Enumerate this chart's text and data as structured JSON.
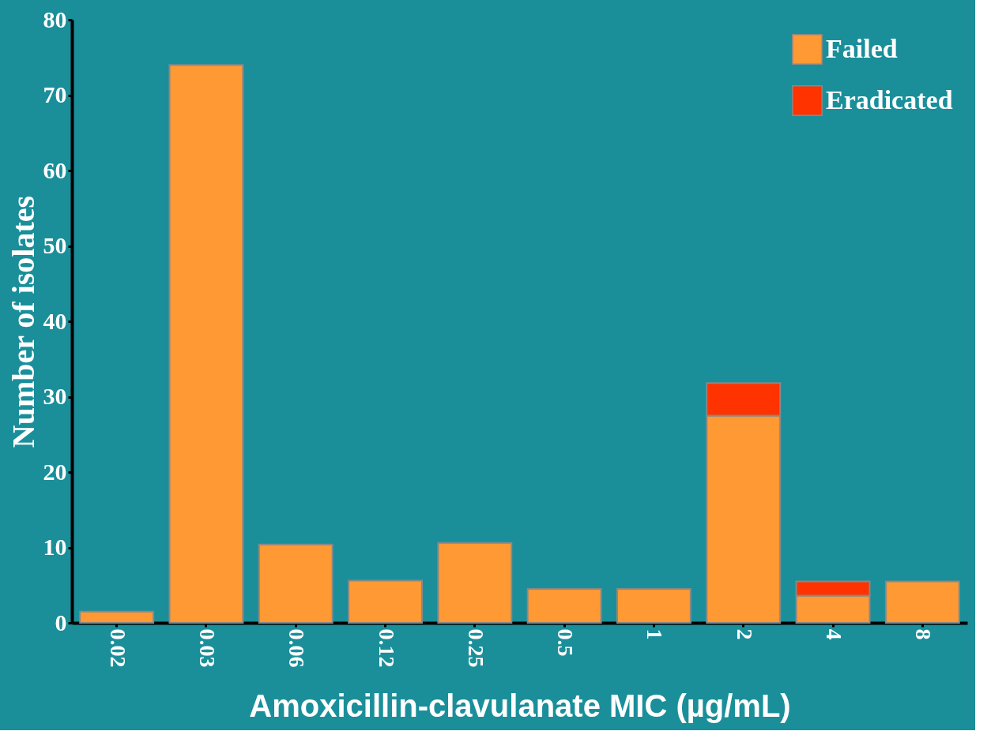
{
  "chart_data": {
    "type": "bar",
    "stacked": true,
    "xlabel": "Amoxicillin-clavulanate MIC (µg/mL)",
    "ylabel": "Number of isolates",
    "categories": [
      "0.02",
      "0.03",
      "0.06",
      "0.12",
      "0.25",
      "0.5",
      "1",
      "2",
      "4",
      "8"
    ],
    "series": [
      {
        "name": "Failed",
        "color": "#ff9933",
        "values": [
          1.5,
          74,
          10.4,
          5.6,
          10.6,
          4.5,
          4.5,
          27.5,
          3.6,
          5.5
        ]
      },
      {
        "name": "Eradicated",
        "color": "#ff3300",
        "values": [
          null,
          null,
          null,
          null,
          null,
          null,
          null,
          4.3,
          1.9,
          null
        ]
      }
    ],
    "ylim": [
      0,
      80
    ],
    "yticks": [
      0,
      10,
      20,
      30,
      40,
      50,
      60,
      70,
      80
    ],
    "grid": false,
    "legend": "top right"
  }
}
